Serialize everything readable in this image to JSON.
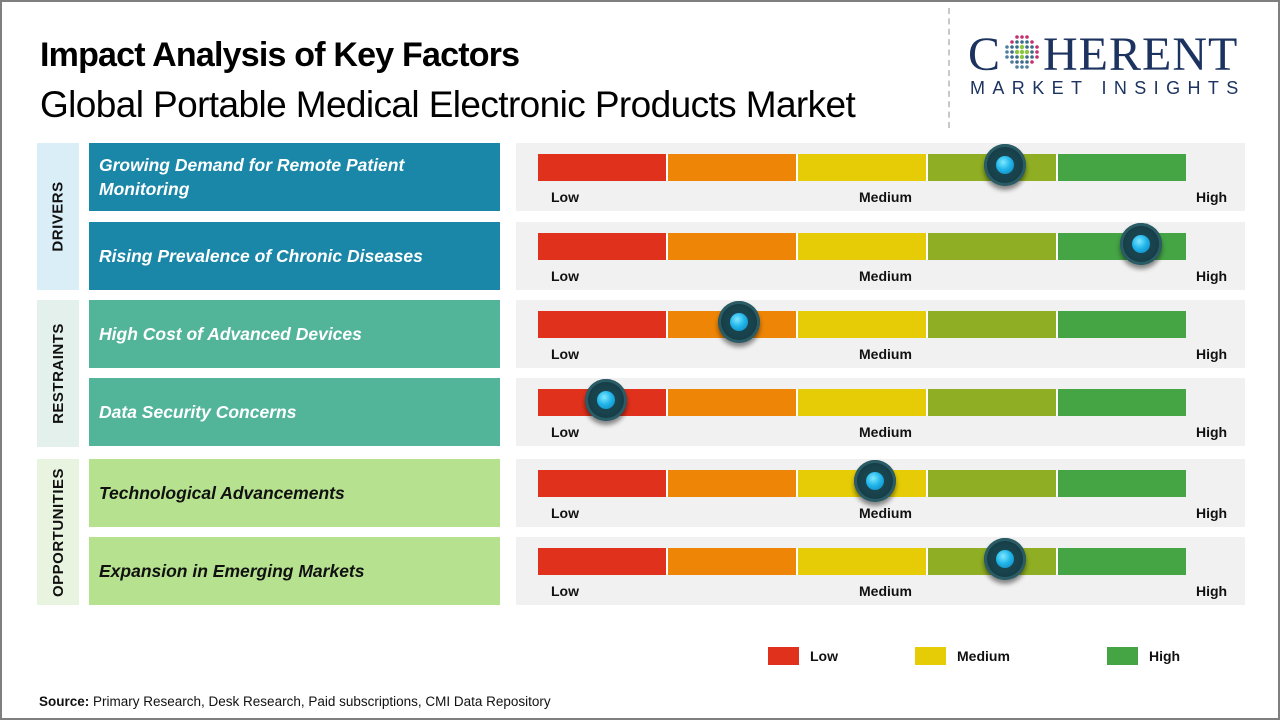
{
  "header": {
    "title": "Impact Analysis of Key Factors",
    "subtitle": "Global Portable Medical Electronic Products Market"
  },
  "logo": {
    "icon": "globe-dots-icon",
    "brand_first": "C",
    "brand_rest": "HERENT",
    "tagline": "MARKET INSIGHTS",
    "color": "#1c3360"
  },
  "scale": {
    "low_label": "Low",
    "medium_label": "Medium",
    "high_label": "High",
    "segment_colors": [
      "#e0311c",
      "#ee8506",
      "#e5cc06",
      "#8fae23",
      "#45a545"
    ]
  },
  "chart_data": {
    "type": "table",
    "title": "Impact Analysis of Key Factors",
    "subtitle": "Global Portable Medical Electronic Products Market",
    "scale": [
      "Low",
      "Medium",
      "High"
    ],
    "note": "impact values are estimated marker positions on a 0 (Low) to 1 (High) gauge",
    "categories": [
      {
        "name": "DRIVERS",
        "label_bg": "#d9eef6",
        "box_bg": "#1a87a8",
        "text_color": "#ffffff",
        "factors": [
          {
            "label": "Growing Demand for Remote Patient Monitoring",
            "impact": 0.72,
            "level": "High"
          },
          {
            "label": "Rising Prevalence of Chronic Diseases",
            "impact": 0.93,
            "level": "High"
          }
        ]
      },
      {
        "name": "RESTRAINTS",
        "label_bg": "#e3f0ec",
        "box_bg": "#52b59a",
        "text_color": "#ffffff",
        "factors": [
          {
            "label": "High Cost of Advanced Devices",
            "impact": 0.31,
            "level": "Low"
          },
          {
            "label": "Data Security Concerns",
            "impact": 0.105,
            "level": "Low"
          }
        ]
      },
      {
        "name": "OPPORTUNITIES",
        "label_bg": "#e8f4e0",
        "box_bg": "#b6e28f",
        "text_color": "#111111",
        "factors": [
          {
            "label": "Technological Advancements",
            "impact": 0.52,
            "level": "Medium"
          },
          {
            "label": "Expansion in Emerging Markets",
            "impact": 0.72,
            "level": "High"
          }
        ]
      }
    ],
    "legend": [
      {
        "label": "Low",
        "color": "#e0311c"
      },
      {
        "label": "Medium",
        "color": "#e5cc06"
      },
      {
        "label": "High",
        "color": "#45a545"
      }
    ],
    "legend_position": "bottom-right"
  },
  "source": {
    "label": "Source:",
    "text": " Primary Research, Desk Research, Paid subscriptions, CMI Data Repository"
  }
}
